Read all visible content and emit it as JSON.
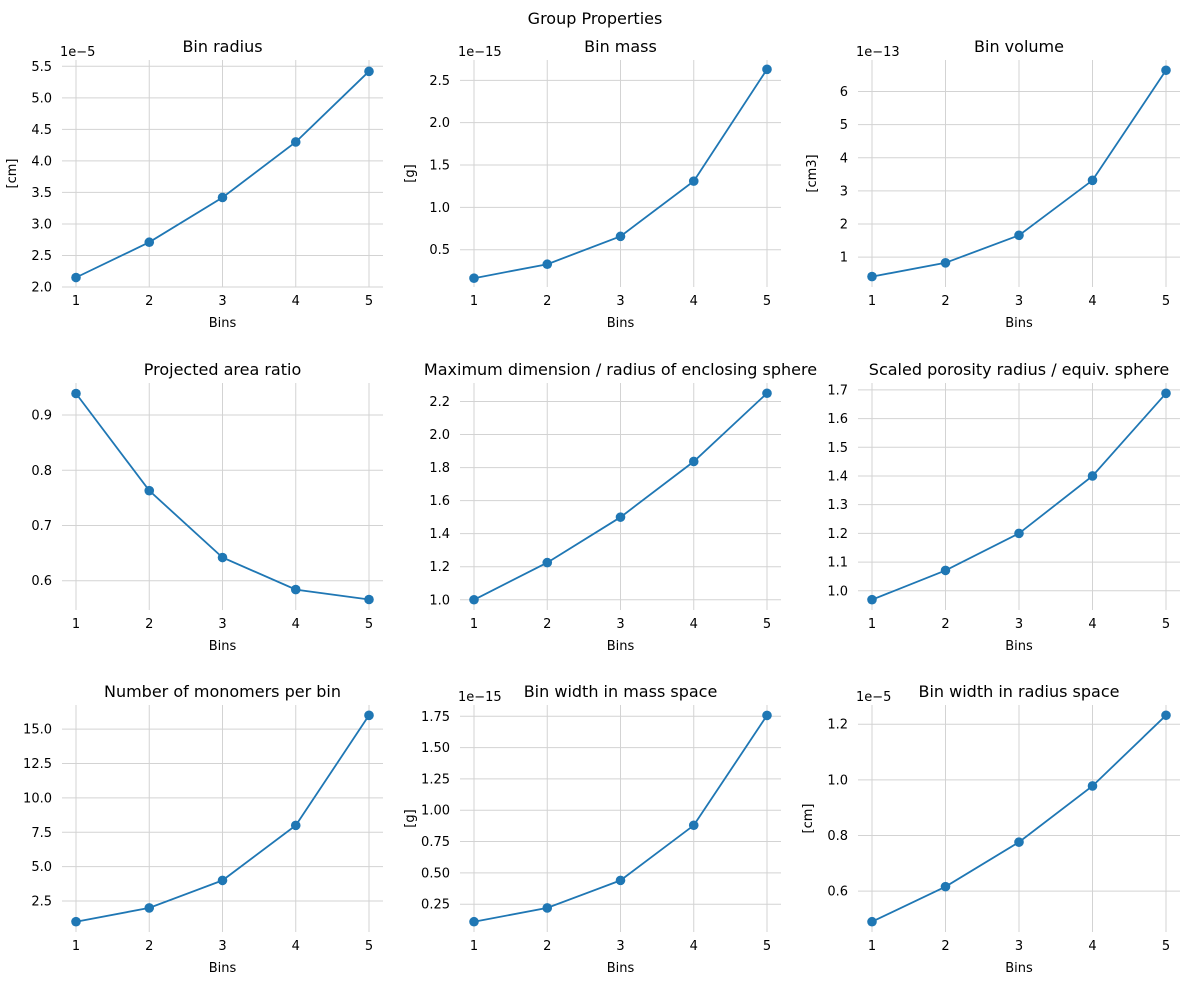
{
  "figure": {
    "suptitle": "Group Properties",
    "line_color": "#1f77b4",
    "grid_color": "#d3d3d3"
  },
  "chart_data": [
    {
      "type": "line",
      "title": "Bin radius",
      "xlabel": "Bins",
      "ylabel": "[cm]",
      "x": [
        1,
        2,
        3,
        4,
        5
      ],
      "values": [
        2.15e-05,
        2.71e-05,
        3.42e-05,
        4.3e-05,
        5.42e-05
      ],
      "ylim": [
        2e-05,
        5.6e-05
      ],
      "exponent_label": "1e−5",
      "scale": 1e-05,
      "yticks": [
        2.0,
        2.5,
        3.0,
        3.5,
        4.0,
        4.5,
        5.0,
        5.5
      ],
      "ytick_labels": [
        "2.0",
        "2.5",
        "3.0",
        "3.5",
        "4.0",
        "4.5",
        "5.0",
        "5.5"
      ],
      "xtick_labels": [
        "1",
        "2",
        "3",
        "4",
        "5"
      ]
    },
    {
      "type": "line",
      "title": "Bin mass",
      "xlabel": "Bins",
      "ylabel": "[g]",
      "x": [
        1,
        2,
        3,
        4,
        5
      ],
      "values": [
        1.64e-16,
        3.29e-16,
        6.58e-16,
        1.31e-15,
        2.63e-15
      ],
      "ylim": [
        6e-17,
        2.74e-15
      ],
      "exponent_label": "1e−15",
      "scale": 1e-15,
      "yticks": [
        0.5,
        1.0,
        1.5,
        2.0,
        2.5
      ],
      "ytick_labels": [
        "0.5",
        "1.0",
        "1.5",
        "2.0",
        "2.5"
      ],
      "xtick_labels": [
        "1",
        "2",
        "3",
        "4",
        "5"
      ]
    },
    {
      "type": "line",
      "title": "Bin volume",
      "xlabel": "Bins",
      "ylabel": "[cm3]",
      "x": [
        1,
        2,
        3,
        4,
        5
      ],
      "values": [
        4.15e-14,
        8.3e-14,
        1.66e-13,
        3.32e-13,
        6.64e-13
      ],
      "ylim": [
        1e-14,
        6.95e-13
      ],
      "exponent_label": "1e−13",
      "scale": 1e-13,
      "yticks": [
        1,
        2,
        3,
        4,
        5,
        6
      ],
      "ytick_labels": [
        "1",
        "2",
        "3",
        "4",
        "5",
        "6"
      ],
      "xtick_labels": [
        "1",
        "2",
        "3",
        "4",
        "5"
      ]
    },
    {
      "type": "line",
      "title": "Projected area ratio",
      "xlabel": "Bins",
      "ylabel": "",
      "x": [
        1,
        2,
        3,
        4,
        5
      ],
      "values": [
        0.939,
        0.763,
        0.642,
        0.584,
        0.566
      ],
      "ylim": [
        0.547,
        0.958
      ],
      "exponent_label": "",
      "scale": 1,
      "yticks": [
        0.6,
        0.7,
        0.8,
        0.9
      ],
      "ytick_labels": [
        "0.6",
        "0.7",
        "0.8",
        "0.9"
      ],
      "xtick_labels": [
        "1",
        "2",
        "3",
        "4",
        "5"
      ]
    },
    {
      "type": "line",
      "title": "Maximum dimension / radius of enclosing sphere",
      "xlabel": "Bins",
      "ylabel": "",
      "x": [
        1,
        2,
        3,
        4,
        5
      ],
      "values": [
        1.0,
        1.225,
        1.5,
        1.837,
        2.25
      ],
      "ylim": [
        0.938,
        2.312
      ],
      "exponent_label": "",
      "scale": 1,
      "yticks": [
        1.0,
        1.2,
        1.4,
        1.6,
        1.8,
        2.0,
        2.2
      ],
      "ytick_labels": [
        "1.0",
        "1.2",
        "1.4",
        "1.6",
        "1.8",
        "2.0",
        "2.2"
      ],
      "xtick_labels": [
        "1",
        "2",
        "3",
        "4",
        "5"
      ]
    },
    {
      "type": "line",
      "title": "Scaled porosity radius / equiv. sphere",
      "xlabel": "Bins",
      "ylabel": "",
      "x": [
        1,
        2,
        3,
        4,
        5
      ],
      "values": [
        0.969,
        1.071,
        1.2,
        1.4,
        1.688
      ],
      "ylim": [
        0.933,
        1.724
      ],
      "exponent_label": "",
      "scale": 1,
      "yticks": [
        1.0,
        1.1,
        1.2,
        1.3,
        1.4,
        1.5,
        1.6,
        1.7
      ],
      "ytick_labels": [
        "1.0",
        "1.1",
        "1.2",
        "1.3",
        "1.4",
        "1.5",
        "1.6",
        "1.7"
      ],
      "xtick_labels": [
        "1",
        "2",
        "3",
        "4",
        "5"
      ]
    },
    {
      "type": "line",
      "title": "Number of monomers per bin",
      "xlabel": "Bins",
      "ylabel": "",
      "x": [
        1,
        2,
        3,
        4,
        5
      ],
      "values": [
        1,
        2,
        4,
        8,
        16
      ],
      "ylim": [
        0.25,
        16.75
      ],
      "exponent_label": "",
      "scale": 1,
      "yticks": [
        2.5,
        5.0,
        7.5,
        10.0,
        12.5,
        15.0
      ],
      "ytick_labels": [
        "2.5",
        "5.0",
        "7.5",
        "10.0",
        "12.5",
        "15.0"
      ],
      "xtick_labels": [
        "1",
        "2",
        "3",
        "4",
        "5"
      ]
    },
    {
      "type": "line",
      "title": "Bin width in mass space",
      "xlabel": "Bins",
      "ylabel": "[g]",
      "x": [
        1,
        2,
        3,
        4,
        5
      ],
      "values": [
        1.1e-16,
        2.2e-16,
        4.4e-16,
        8.8e-16,
        1.757e-15
      ],
      "ylim": [
        2.8e-17,
        1.84e-15
      ],
      "exponent_label": "1e−15",
      "scale": 1e-15,
      "yticks": [
        0.25,
        0.5,
        0.75,
        1.0,
        1.25,
        1.5,
        1.75
      ],
      "ytick_labels": [
        "0.25",
        "0.50",
        "0.75",
        "1.00",
        "1.25",
        "1.50",
        "1.75"
      ],
      "xtick_labels": [
        "1",
        "2",
        "3",
        "4",
        "5"
      ]
    },
    {
      "type": "line",
      "title": "Bin width in radius space",
      "xlabel": "Bins",
      "ylabel": "[cm]",
      "x": [
        1,
        2,
        3,
        4,
        5
      ],
      "values": [
        4.9e-06,
        6.16e-06,
        7.76e-06,
        9.78e-06,
        1.232e-05
      ],
      "ylim": [
        4.53e-06,
        1.269e-05
      ],
      "exponent_label": "1e−5",
      "scale": 1e-05,
      "yticks": [
        0.6,
        0.8,
        1.0,
        1.2
      ],
      "ytick_labels": [
        "0.6",
        "0.8",
        "1.0",
        "1.2"
      ],
      "xtick_labels": [
        "1",
        "2",
        "3",
        "4",
        "5"
      ]
    }
  ]
}
